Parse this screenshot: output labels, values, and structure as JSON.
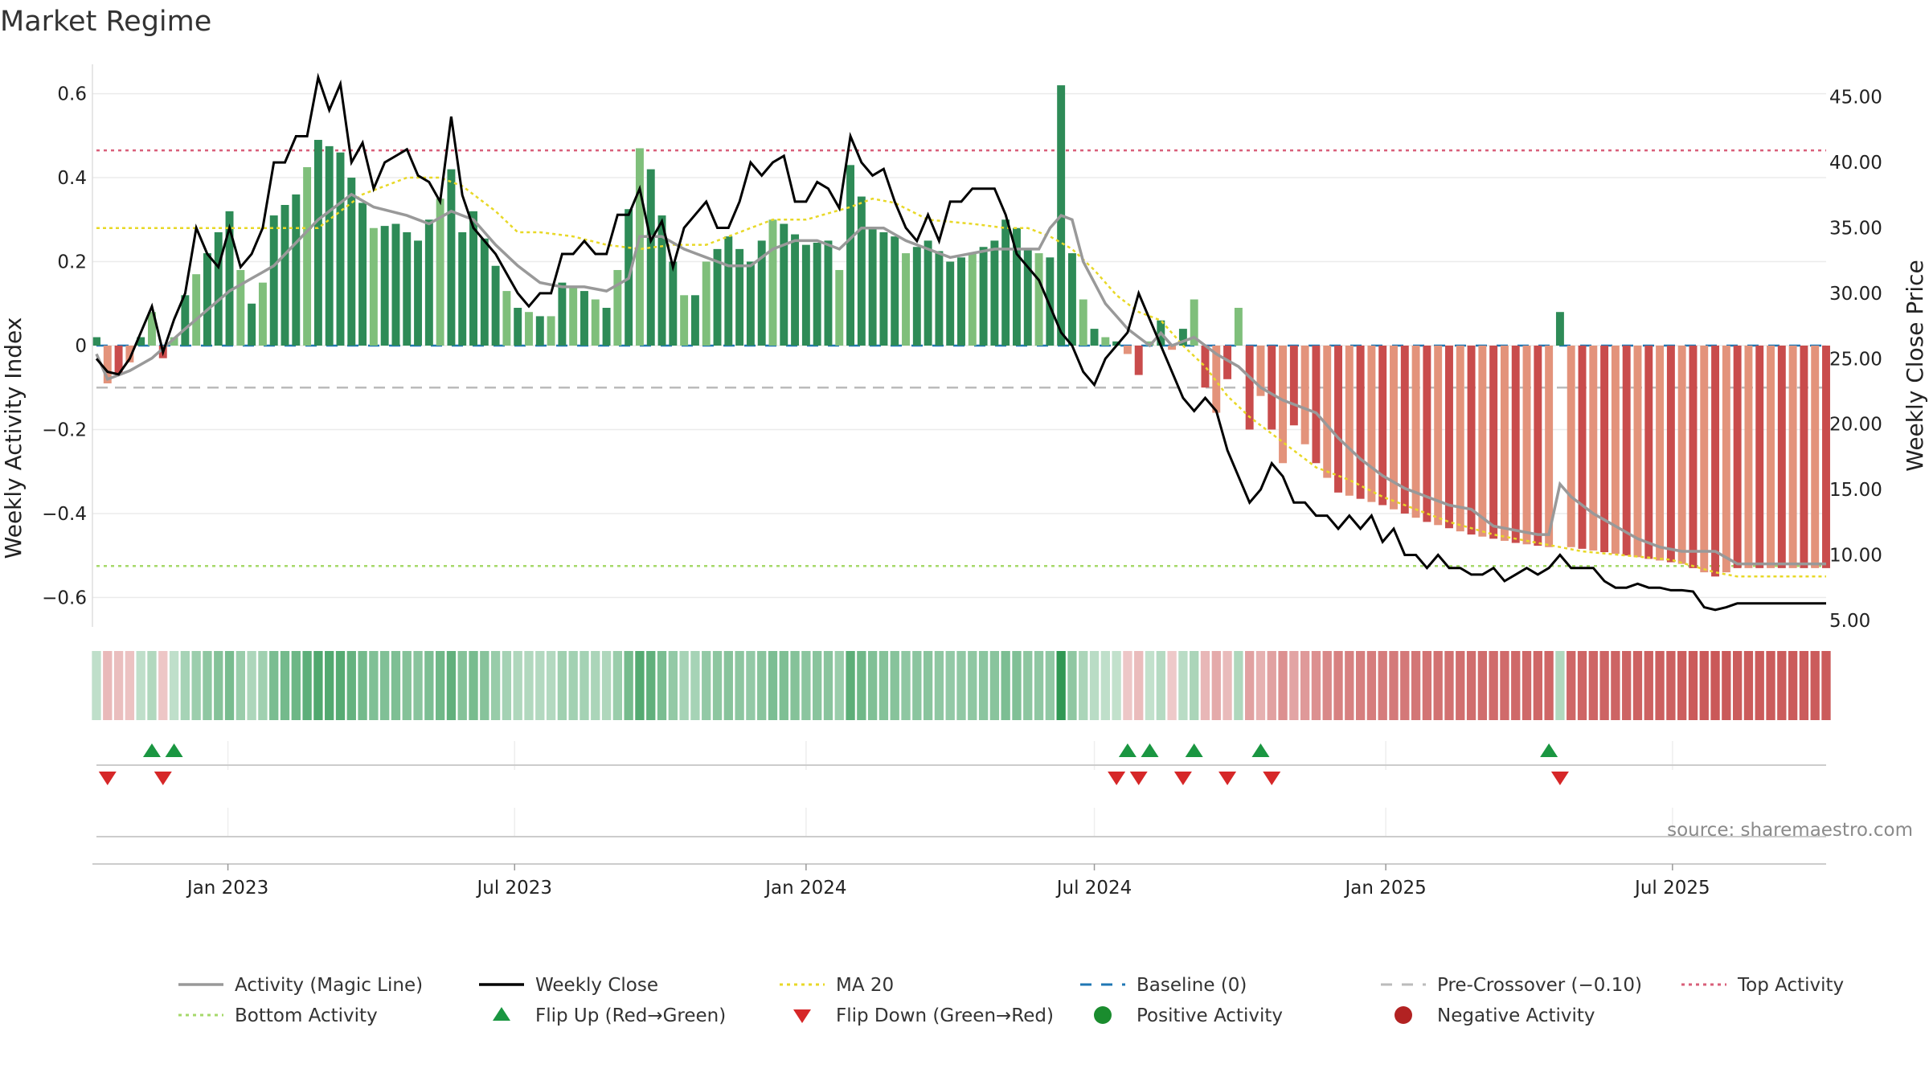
{
  "colors": {
    "pos_dark": "#2e8b57",
    "pos_light": "#7fbf7b",
    "neg_dark": "#c94c4c",
    "neg_light": "#e3937b",
    "magic": "#999999",
    "close": "#000000",
    "ma": "#e8d827",
    "baseline": "#1f77b4",
    "precross": "#bbbbbb",
    "top": "#d95f7a",
    "bottom": "#a6d96a",
    "flip_up": "#1a9641",
    "flip_down": "#d62728",
    "pos_dot": "#1a8c2e",
    "neg_dot": "#b22222"
  },
  "chart_data": {
    "type": "bar",
    "title": "Market Regime",
    "ylabel": "Weekly Activity Index",
    "y2label": "Weekly Close Price",
    "ylim": [
      -0.67,
      0.67
    ],
    "y2lim": [
      4.5,
      47.5
    ],
    "yticks": [
      0.6,
      0.4,
      0.2,
      0,
      -0.2,
      -0.4,
      -0.6
    ],
    "yticklabels": [
      "0.6",
      "0.4",
      "0.2",
      "0",
      "−0.2",
      "−0.4",
      "−0.6"
    ],
    "y2ticks": [
      45,
      40,
      35,
      30,
      25,
      20,
      15,
      10,
      5
    ],
    "y2ticklabels": [
      "45.00",
      "40.00",
      "35.00",
      "30.00",
      "25.00",
      "20.00",
      "15.00",
      "10.00",
      "5.00"
    ],
    "x_start": "2022-10-10",
    "x_end": "2025-10-06",
    "week_step": 7,
    "xticks": [
      {
        "date": "2023-01-01",
        "label": "Jan 2023"
      },
      {
        "date": "2023-07-01",
        "label": "Jul 2023"
      },
      {
        "date": "2024-01-01",
        "label": "Jan 2024"
      },
      {
        "date": "2024-07-01",
        "label": "Jul 2024"
      },
      {
        "date": "2025-01-01",
        "label": "Jan 2025"
      },
      {
        "date": "2025-07-01",
        "label": "Jul 2025"
      }
    ],
    "reference_lines": {
      "baseline": 0,
      "pre_crossover": -0.1,
      "top_activity": 0.465,
      "bottom_activity": -0.525
    },
    "activity_anchors": [
      [
        0,
        0.02
      ],
      [
        1,
        -0.09
      ],
      [
        3,
        -0.04
      ],
      [
        5,
        0.08
      ],
      [
        6,
        -0.03
      ],
      [
        7,
        0.02
      ],
      [
        8,
        0.12
      ],
      [
        10,
        0.22
      ],
      [
        12,
        0.32
      ],
      [
        13,
        0.18
      ],
      [
        14,
        0.1
      ],
      [
        15,
        0.15
      ],
      [
        16,
        0.31
      ],
      [
        18,
        0.36
      ],
      [
        20,
        0.49
      ],
      [
        22,
        0.46
      ],
      [
        23,
        0.4
      ],
      [
        25,
        0.28
      ],
      [
        27,
        0.29
      ],
      [
        29,
        0.25
      ],
      [
        31,
        0.35
      ],
      [
        32,
        0.42
      ],
      [
        33,
        0.27
      ],
      [
        34,
        0.32
      ],
      [
        36,
        0.19
      ],
      [
        37,
        0.13
      ],
      [
        38,
        0.09
      ],
      [
        40,
        0.07
      ],
      [
        41,
        0.07
      ],
      [
        42,
        0.15
      ],
      [
        44,
        0.13
      ],
      [
        46,
        0.09
      ],
      [
        47,
        0.18
      ],
      [
        49,
        0.47
      ],
      [
        50,
        0.42
      ],
      [
        52,
        0.2
      ],
      [
        53,
        0.12
      ],
      [
        54,
        0.12
      ],
      [
        55,
        0.2
      ],
      [
        57,
        0.26
      ],
      [
        59,
        0.2
      ],
      [
        61,
        0.3
      ],
      [
        62,
        0.29
      ],
      [
        64,
        0.24
      ],
      [
        66,
        0.25
      ],
      [
        67,
        0.18
      ],
      [
        68,
        0.43
      ],
      [
        70,
        0.28
      ],
      [
        72,
        0.26
      ],
      [
        73,
        0.22
      ],
      [
        75,
        0.25
      ],
      [
        77,
        0.2
      ],
      [
        79,
        0.22
      ],
      [
        81,
        0.25
      ],
      [
        82,
        0.3
      ],
      [
        83,
        0.28
      ],
      [
        84,
        0.23
      ],
      [
        86,
        0.21
      ],
      [
        87,
        0.62
      ],
      [
        88,
        0.22
      ],
      [
        89,
        0.11
      ],
      [
        90,
        0.04
      ],
      [
        91,
        0.02
      ],
      [
        92,
        0.01
      ],
      [
        93,
        -0.02
      ],
      [
        94,
        -0.07
      ],
      [
        95,
        0.01
      ],
      [
        96,
        0.06
      ],
      [
        97,
        -0.01
      ],
      [
        98,
        0.04
      ],
      [
        99,
        0.11
      ],
      [
        100,
        -0.1
      ],
      [
        101,
        -0.16
      ],
      [
        102,
        -0.08
      ],
      [
        103,
        0.09
      ],
      [
        104,
        -0.2
      ],
      [
        105,
        -0.12
      ],
      [
        107,
        -0.28
      ],
      [
        108,
        -0.19
      ],
      [
        110,
        -0.28
      ],
      [
        112,
        -0.35
      ],
      [
        116,
        -0.38
      ],
      [
        120,
        -0.42
      ],
      [
        124,
        -0.45
      ],
      [
        128,
        -0.47
      ],
      [
        131,
        -0.48
      ],
      [
        132,
        0.08
      ],
      [
        133,
        -0.48
      ],
      [
        138,
        -0.5
      ],
      [
        143,
        -0.52
      ],
      [
        146,
        -0.55
      ],
      [
        148,
        -0.53
      ]
    ],
    "close_anchors": [
      [
        0,
        25
      ],
      [
        1,
        24
      ],
      [
        2,
        23.8
      ],
      [
        3,
        25
      ],
      [
        4,
        27
      ],
      [
        5,
        29
      ],
      [
        6,
        25.5
      ],
      [
        7,
        28
      ],
      [
        8,
        30
      ],
      [
        9,
        35
      ],
      [
        10,
        33
      ],
      [
        11,
        32
      ],
      [
        12,
        35
      ],
      [
        13,
        32
      ],
      [
        14,
        33
      ],
      [
        15,
        35
      ],
      [
        16,
        40
      ],
      [
        17,
        40
      ],
      [
        18,
        42
      ],
      [
        19,
        42
      ],
      [
        20,
        46.5
      ],
      [
        21,
        44
      ],
      [
        22,
        46
      ],
      [
        23,
        40
      ],
      [
        24,
        41.5
      ],
      [
        25,
        38
      ],
      [
        26,
        40
      ],
      [
        27,
        40.5
      ],
      [
        28,
        41
      ],
      [
        29,
        39
      ],
      [
        30,
        38.5
      ],
      [
        31,
        37
      ],
      [
        32,
        43.5
      ],
      [
        33,
        37.5
      ],
      [
        34,
        35
      ],
      [
        35,
        34
      ],
      [
        36,
        33
      ],
      [
        37,
        31.5
      ],
      [
        38,
        30
      ],
      [
        39,
        29
      ],
      [
        40,
        30
      ],
      [
        41,
        30
      ],
      [
        42,
        33
      ],
      [
        43,
        33
      ],
      [
        44,
        34
      ],
      [
        45,
        33
      ],
      [
        46,
        33
      ],
      [
        47,
        36
      ],
      [
        48,
        36
      ],
      [
        49,
        38
      ],
      [
        50,
        34
      ],
      [
        51,
        35.5
      ],
      [
        52,
        32
      ],
      [
        53,
        35
      ],
      [
        54,
        36
      ],
      [
        55,
        37
      ],
      [
        56,
        35
      ],
      [
        57,
        35
      ],
      [
        58,
        37
      ],
      [
        59,
        40
      ],
      [
        60,
        39
      ],
      [
        61,
        40
      ],
      [
        62,
        40.5
      ],
      [
        63,
        37
      ],
      [
        64,
        37
      ],
      [
        65,
        38.5
      ],
      [
        66,
        38
      ],
      [
        67,
        36.5
      ],
      [
        68,
        42
      ],
      [
        69,
        40
      ],
      [
        70,
        39
      ],
      [
        71,
        39.5
      ],
      [
        72,
        37
      ],
      [
        73,
        35
      ],
      [
        74,
        34
      ],
      [
        75,
        36
      ],
      [
        76,
        34
      ],
      [
        77,
        37
      ],
      [
        78,
        37
      ],
      [
        79,
        38
      ],
      [
        80,
        38
      ],
      [
        81,
        38
      ],
      [
        82,
        36
      ],
      [
        83,
        33
      ],
      [
        84,
        32
      ],
      [
        85,
        31
      ],
      [
        86,
        29
      ],
      [
        87,
        27
      ],
      [
        88,
        26
      ],
      [
        89,
        24
      ],
      [
        90,
        23
      ],
      [
        91,
        25
      ],
      [
        92,
        26
      ],
      [
        93,
        27
      ],
      [
        94,
        30
      ],
      [
        95,
        28
      ],
      [
        96,
        26
      ],
      [
        97,
        24
      ],
      [
        98,
        22
      ],
      [
        99,
        21
      ],
      [
        100,
        22
      ],
      [
        101,
        21
      ],
      [
        102,
        18
      ],
      [
        103,
        16
      ],
      [
        104,
        14
      ],
      [
        105,
        15
      ],
      [
        106,
        17
      ],
      [
        107,
        16
      ],
      [
        108,
        14
      ],
      [
        109,
        14
      ],
      [
        110,
        13
      ],
      [
        111,
        13
      ],
      [
        112,
        12
      ],
      [
        113,
        13
      ],
      [
        114,
        12
      ],
      [
        115,
        13
      ],
      [
        116,
        11
      ],
      [
        117,
        12
      ],
      [
        118,
        10
      ],
      [
        119,
        10
      ],
      [
        120,
        9
      ],
      [
        121,
        10
      ],
      [
        122,
        9
      ],
      [
        123,
        9
      ],
      [
        124,
        8.5
      ],
      [
        125,
        8.5
      ],
      [
        126,
        9
      ],
      [
        127,
        8
      ],
      [
        128,
        8.5
      ],
      [
        129,
        9
      ],
      [
        130,
        8.5
      ],
      [
        131,
        9
      ],
      [
        132,
        10
      ],
      [
        133,
        9
      ],
      [
        134,
        9
      ],
      [
        135,
        9
      ],
      [
        136,
        8
      ],
      [
        137,
        7.5
      ],
      [
        138,
        7.5
      ],
      [
        139,
        7.8
      ],
      [
        140,
        7.5
      ],
      [
        141,
        7.5
      ],
      [
        142,
        7.3
      ],
      [
        143,
        7.3
      ],
      [
        144,
        7.2
      ],
      [
        145,
        6
      ],
      [
        146,
        5.8
      ],
      [
        147,
        6
      ],
      [
        148,
        6.3
      ]
    ],
    "magic_anchors": [
      [
        0,
        -0.02
      ],
      [
        1,
        -0.08
      ],
      [
        3,
        -0.06
      ],
      [
        5,
        -0.03
      ],
      [
        8,
        0.04
      ],
      [
        12,
        0.13
      ],
      [
        16,
        0.19
      ],
      [
        20,
        0.3
      ],
      [
        23,
        0.36
      ],
      [
        25,
        0.33
      ],
      [
        28,
        0.31
      ],
      [
        30,
        0.29
      ],
      [
        32,
        0.32
      ],
      [
        34,
        0.3
      ],
      [
        36,
        0.24
      ],
      [
        38,
        0.19
      ],
      [
        40,
        0.15
      ],
      [
        42,
        0.14
      ],
      [
        44,
        0.14
      ],
      [
        46,
        0.13
      ],
      [
        48,
        0.16
      ],
      [
        49,
        0.26
      ],
      [
        51,
        0.26
      ],
      [
        53,
        0.23
      ],
      [
        55,
        0.21
      ],
      [
        57,
        0.19
      ],
      [
        59,
        0.19
      ],
      [
        61,
        0.23
      ],
      [
        63,
        0.25
      ],
      [
        65,
        0.25
      ],
      [
        67,
        0.23
      ],
      [
        69,
        0.28
      ],
      [
        71,
        0.28
      ],
      [
        73,
        0.25
      ],
      [
        75,
        0.23
      ],
      [
        77,
        0.21
      ],
      [
        79,
        0.22
      ],
      [
        81,
        0.23
      ],
      [
        83,
        0.23
      ],
      [
        85,
        0.23
      ],
      [
        86,
        0.28
      ],
      [
        87,
        0.31
      ],
      [
        88,
        0.3
      ],
      [
        89,
        0.2
      ],
      [
        90,
        0.15
      ],
      [
        91,
        0.1
      ],
      [
        93,
        0.04
      ],
      [
        95,
        0.0
      ],
      [
        96,
        0.03
      ],
      [
        97,
        0.0
      ],
      [
        99,
        0.02
      ],
      [
        101,
        -0.02
      ],
      [
        103,
        -0.05
      ],
      [
        105,
        -0.1
      ],
      [
        107,
        -0.13
      ],
      [
        108,
        -0.14
      ],
      [
        110,
        -0.16
      ],
      [
        112,
        -0.22
      ],
      [
        114,
        -0.27
      ],
      [
        116,
        -0.31
      ],
      [
        118,
        -0.34
      ],
      [
        120,
        -0.36
      ],
      [
        122,
        -0.38
      ],
      [
        124,
        -0.39
      ],
      [
        126,
        -0.43
      ],
      [
        128,
        -0.44
      ],
      [
        130,
        -0.45
      ],
      [
        131,
        -0.45
      ],
      [
        132,
        -0.33
      ],
      [
        133,
        -0.36
      ],
      [
        135,
        -0.4
      ],
      [
        137,
        -0.43
      ],
      [
        139,
        -0.46
      ],
      [
        141,
        -0.48
      ],
      [
        143,
        -0.49
      ],
      [
        146,
        -0.49
      ],
      [
        148,
        -0.52
      ]
    ],
    "ma_anchors": [
      [
        0,
        0.28
      ],
      [
        6,
        0.28
      ],
      [
        12,
        0.28
      ],
      [
        20,
        0.28
      ],
      [
        24,
        0.36
      ],
      [
        28,
        0.4
      ],
      [
        31,
        0.4
      ],
      [
        33,
        0.38
      ],
      [
        36,
        0.32
      ],
      [
        38,
        0.27
      ],
      [
        40,
        0.27
      ],
      [
        43,
        0.26
      ],
      [
        46,
        0.24
      ],
      [
        49,
        0.23
      ],
      [
        52,
        0.24
      ],
      [
        55,
        0.24
      ],
      [
        58,
        0.27
      ],
      [
        61,
        0.3
      ],
      [
        64,
        0.3
      ],
      [
        68,
        0.33
      ],
      [
        70,
        0.35
      ],
      [
        72,
        0.34
      ],
      [
        75,
        0.3
      ],
      [
        79,
        0.29
      ],
      [
        82,
        0.28
      ],
      [
        84,
        0.28
      ],
      [
        86,
        0.26
      ],
      [
        88,
        0.23
      ],
      [
        90,
        0.18
      ],
      [
        92,
        0.12
      ],
      [
        94,
        0.08
      ],
      [
        96,
        0.06
      ],
      [
        98,
        0.0
      ],
      [
        100,
        -0.05
      ],
      [
        102,
        -0.12
      ],
      [
        104,
        -0.17
      ],
      [
        106,
        -0.21
      ],
      [
        108,
        -0.25
      ],
      [
        110,
        -0.29
      ],
      [
        113,
        -0.32
      ],
      [
        116,
        -0.36
      ],
      [
        119,
        -0.39
      ],
      [
        122,
        -0.42
      ],
      [
        126,
        -0.45
      ],
      [
        130,
        -0.47
      ],
      [
        134,
        -0.49
      ],
      [
        138,
        -0.5
      ],
      [
        142,
        -0.51
      ],
      [
        146,
        -0.54
      ],
      [
        148,
        -0.55
      ]
    ],
    "flip_up_weeks": [
      5,
      7,
      93,
      95,
      99,
      105,
      131
    ],
    "flip_down_weeks": [
      1,
      6,
      92,
      94,
      98,
      102,
      106,
      132
    ],
    "legend": [
      {
        "key": "magic",
        "label": "Activity (Magic Line)",
        "kind": "line"
      },
      {
        "key": "close",
        "label": "Weekly Close",
        "kind": "line"
      },
      {
        "key": "ma",
        "label": "MA 20",
        "kind": "dotted"
      },
      {
        "key": "baseline",
        "label": "Baseline (0)",
        "kind": "dashed"
      },
      {
        "key": "precross",
        "label": "Pre-Crossover (−0.10)",
        "kind": "dashed"
      },
      {
        "key": "top",
        "label": "Top Activity",
        "kind": "dotted"
      },
      {
        "key": "bottom",
        "label": "Bottom Activity",
        "kind": "dotted"
      },
      {
        "key": "flip_up",
        "label": "Flip Up (Red→Green)",
        "kind": "tri-up"
      },
      {
        "key": "flip_down",
        "label": "Flip Down (Green→Red)",
        "kind": "tri-down"
      },
      {
        "key": "pos_dot",
        "label": "Positive Activity",
        "kind": "dot"
      },
      {
        "key": "neg_dot",
        "label": "Negative Activity",
        "kind": "dot"
      }
    ]
  },
  "source": "source: sharemaestro.com"
}
